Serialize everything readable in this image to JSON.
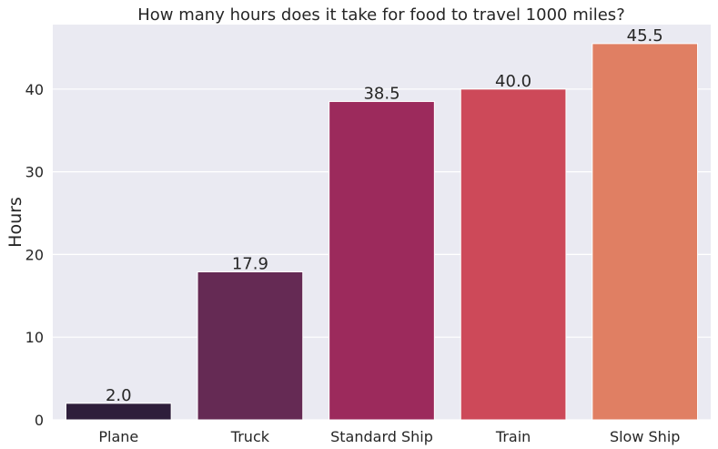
{
  "chart_data": {
    "type": "bar",
    "title": "How many hours does it take for food to travel 1000 miles?",
    "xlabel": "",
    "ylabel": "Hours",
    "categories": [
      "Plane",
      "Truck",
      "Standard Ship",
      "Train",
      "Slow Ship"
    ],
    "values": [
      2.0,
      17.9,
      38.5,
      40.0,
      45.5
    ],
    "value_labels": [
      "2.0",
      "17.9",
      "38.5",
      "40.0",
      "45.5"
    ],
    "colors": [
      "#2e1e3b",
      "#652a54",
      "#9c2a5c",
      "#cd4959",
      "#e07f63"
    ],
    "ylim": [
      0,
      47.8
    ],
    "yticks": [
      0,
      10,
      20,
      30,
      40
    ],
    "grid": true,
    "background": "#eaeaf2"
  }
}
